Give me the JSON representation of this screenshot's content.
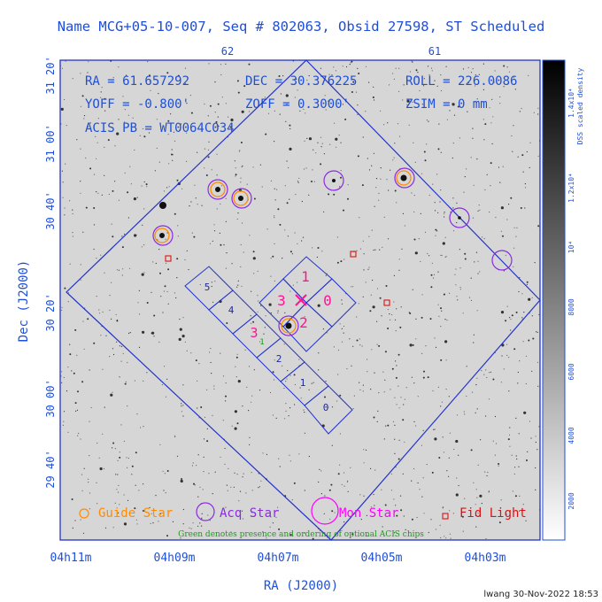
{
  "title": "Name MCG+05-10-007, Seq # 802063, Obsid 27598, ST Scheduled",
  "info": {
    "ra": "RA = 61.657292",
    "dec": "DEC = 30.376225",
    "roll": "ROLL = 226.0086",
    "yoff": "YOFF = -0.800'",
    "zoff": "ZOFF = 0.3000'",
    "zsim": "ZSIM = 0 mm",
    "acis": "ACIS PB = WT0064C034"
  },
  "axes": {
    "xlabel": "RA (J2000)",
    "ylabel": "Dec (J2000)",
    "x_ticks": [
      "04h11m",
      "04h09m",
      "04h07m",
      "04h05m",
      "04h03m"
    ],
    "top_ticks": [
      "62",
      "61"
    ],
    "y_ticks": [
      "31 20'",
      "31 00'",
      "30 40'",
      "30 20'",
      "30 00'",
      "29 40'"
    ]
  },
  "colorbar": {
    "label_line1": "DSS scaled density",
    "label_line2": "1.4x10⁴",
    "ticks": [
      "2000",
      "4000",
      "6000",
      "8000",
      "10⁴",
      "1.2x10⁴",
      "1.4x10⁴"
    ]
  },
  "legend": {
    "guide": "Guide Star",
    "acq": "Acq Star",
    "mon": "Mon Star",
    "fid": "Fid Light",
    "note": "Green denotes presence and ordering of optional ACIS chips"
  },
  "chips": {
    "i_labels": [
      "1",
      "0",
      "2",
      "3"
    ],
    "s_labels": [
      "5",
      "4",
      "3",
      "2",
      "1",
      "0"
    ],
    "optional_label": "1"
  },
  "colors": {
    "title": "#1e4fd8",
    "frame": "#2233cc",
    "guide": "#ff8c00",
    "acq": "#8a2be2",
    "mon": "#ff00ff",
    "fid": "#dd1111",
    "chip_label": "#ff1493",
    "optional": "#1a9a1a",
    "background": "#d6d6d6"
  },
  "footer": "lwang 30-Nov-2022 18:53"
}
